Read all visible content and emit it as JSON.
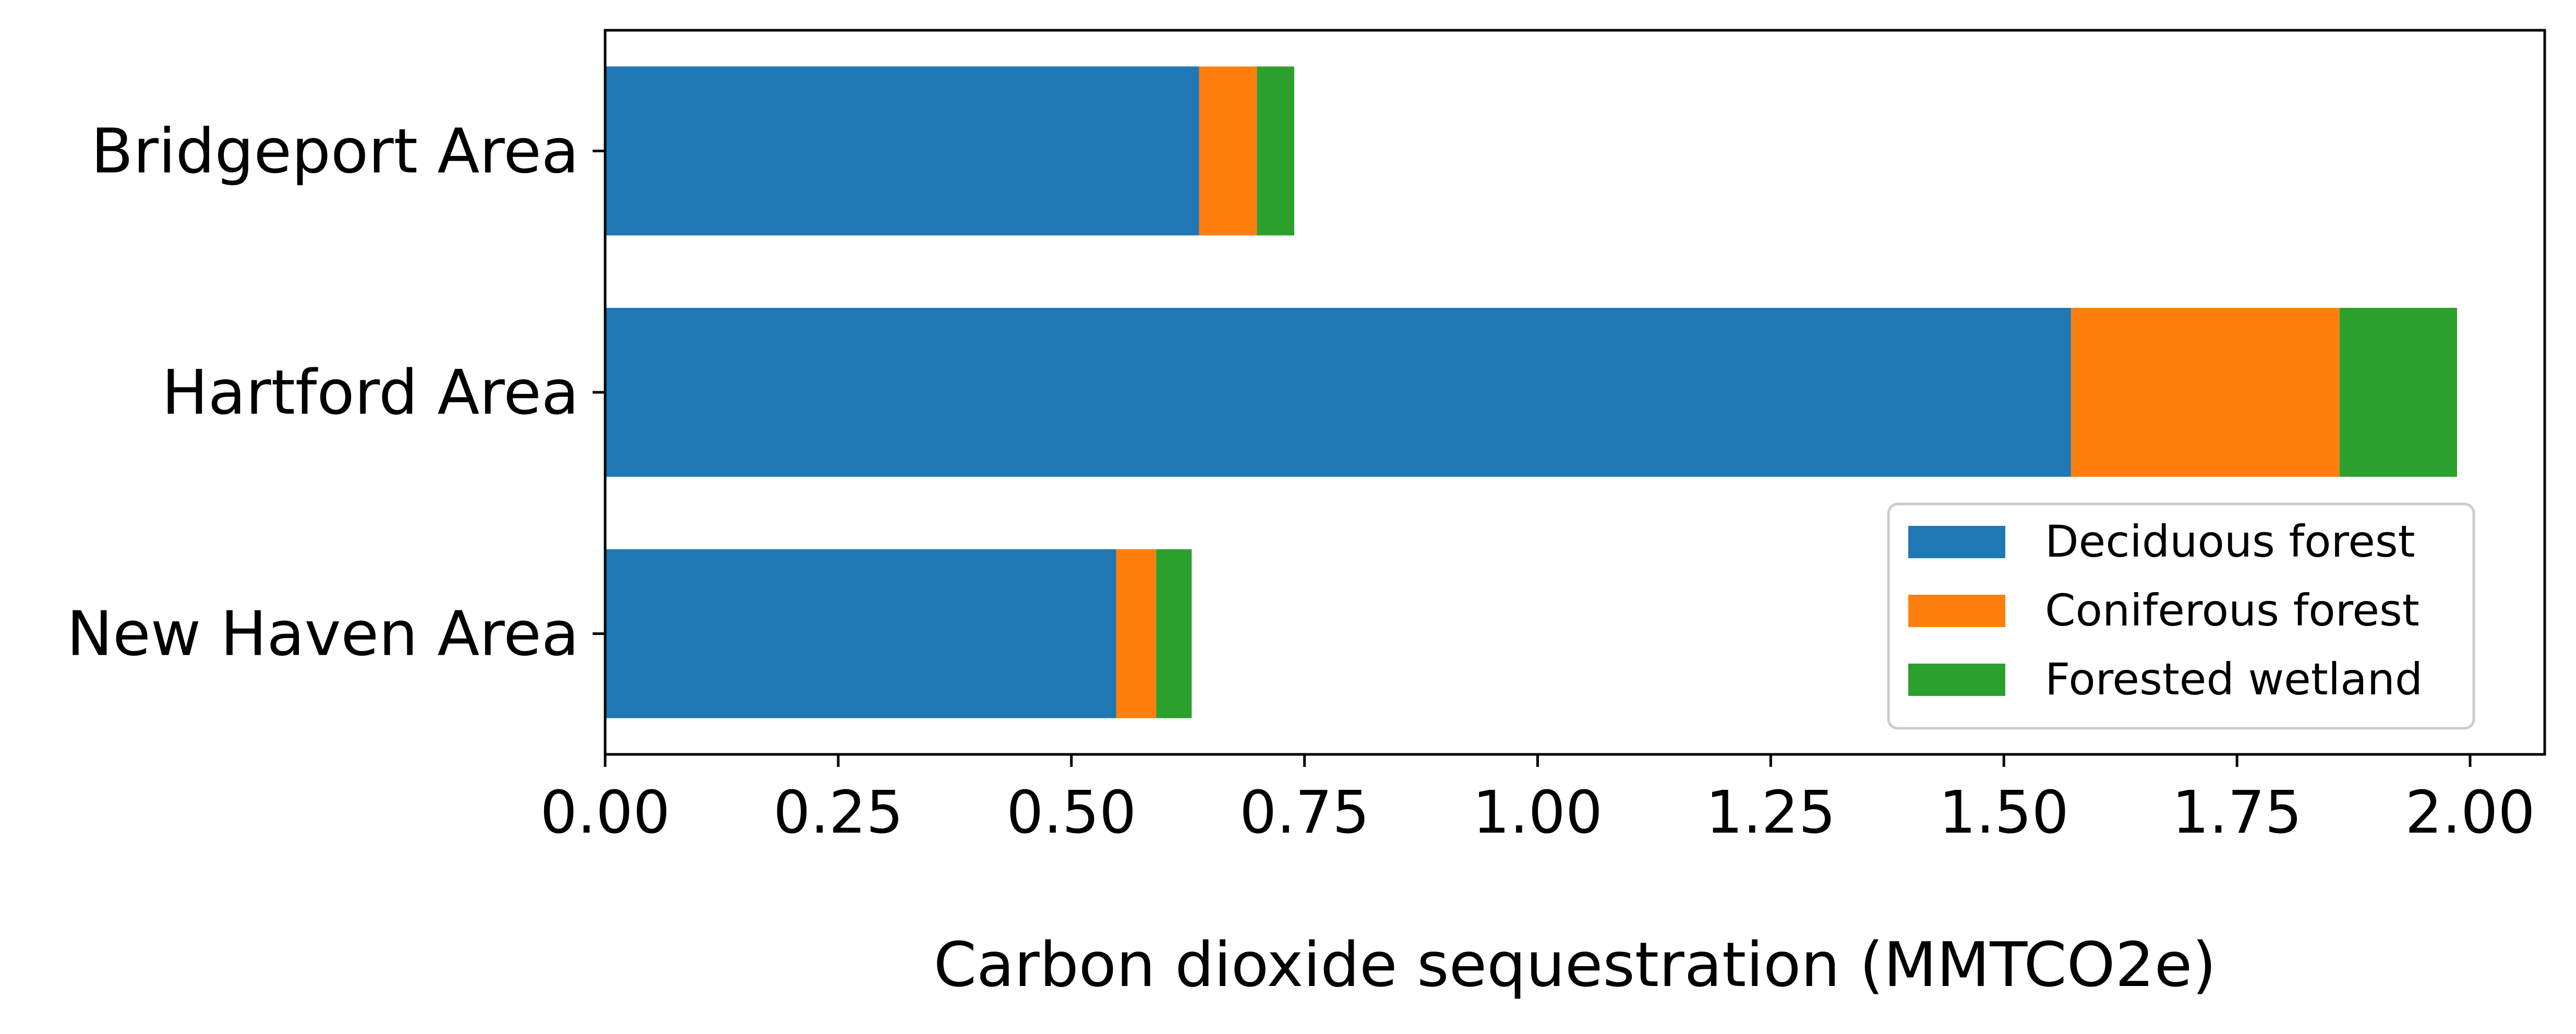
{
  "chart_data": {
    "type": "bar",
    "orientation": "horizontal",
    "stacked": true,
    "categories": [
      "Bridgeport Area",
      "Hartford Area",
      "New Haven Area"
    ],
    "series": [
      {
        "name": "Deciduous forest",
        "color": "#1f77b4",
        "values": [
          0.637,
          1.572,
          0.548
        ]
      },
      {
        "name": "Coniferous forest",
        "color": "#ff7f0e",
        "values": [
          0.062,
          0.288,
          0.043
        ]
      },
      {
        "name": "Forested wetland",
        "color": "#2ca02c",
        "values": [
          0.04,
          0.126,
          0.038
        ]
      }
    ],
    "xlabel": "Carbon dioxide sequestration (MMTCO2e)",
    "ylabel": "",
    "xlim": [
      0,
      2.08
    ],
    "xticks": [
      "0.00",
      "0.25",
      "0.50",
      "0.75",
      "1.00",
      "1.25",
      "1.50",
      "1.75",
      "2.00"
    ],
    "grid": false,
    "legend_position": "lower-right"
  }
}
